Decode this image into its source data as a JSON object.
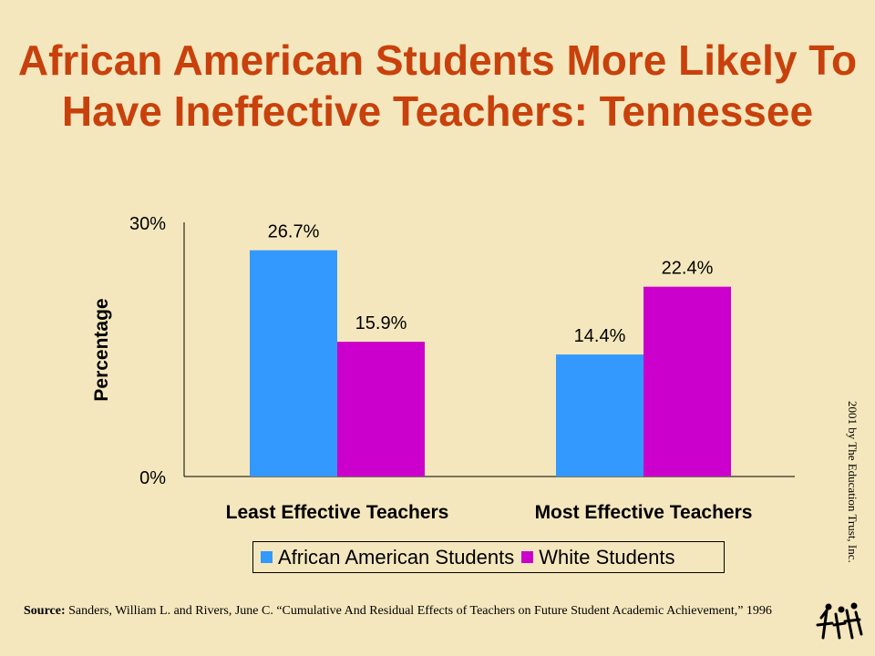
{
  "title": "African American Students More Likely To Have Ineffective Teachers: Tennessee",
  "chart_data": {
    "type": "bar",
    "categories": [
      "Least Effective Teachers",
      "Most Effective Teachers"
    ],
    "series": [
      {
        "name": "African American Students",
        "values": [
          26.7,
          14.4
        ],
        "color": "#3399ff"
      },
      {
        "name": "White Students",
        "values": [
          15.9,
          22.4
        ],
        "color": "#cc00cc"
      }
    ],
    "data_labels": [
      [
        "26.7%",
        "14.4%"
      ],
      [
        "15.9%",
        "22.4%"
      ]
    ],
    "ylabel": "Percentage",
    "yticks": [
      "0%",
      "30%"
    ],
    "ylim": [
      0,
      30
    ],
    "grid": false,
    "legend_position": "bottom"
  },
  "source": {
    "label": "Source:",
    "text": "Sanders, William  L. and Rivers, June C. “Cumulative And Residual Effects of Teachers on Future Student Academic Achievement,”  1996"
  },
  "copyright": "2001 by The Education Trust, Inc.",
  "logo_icon": "education-trust-logo-icon"
}
